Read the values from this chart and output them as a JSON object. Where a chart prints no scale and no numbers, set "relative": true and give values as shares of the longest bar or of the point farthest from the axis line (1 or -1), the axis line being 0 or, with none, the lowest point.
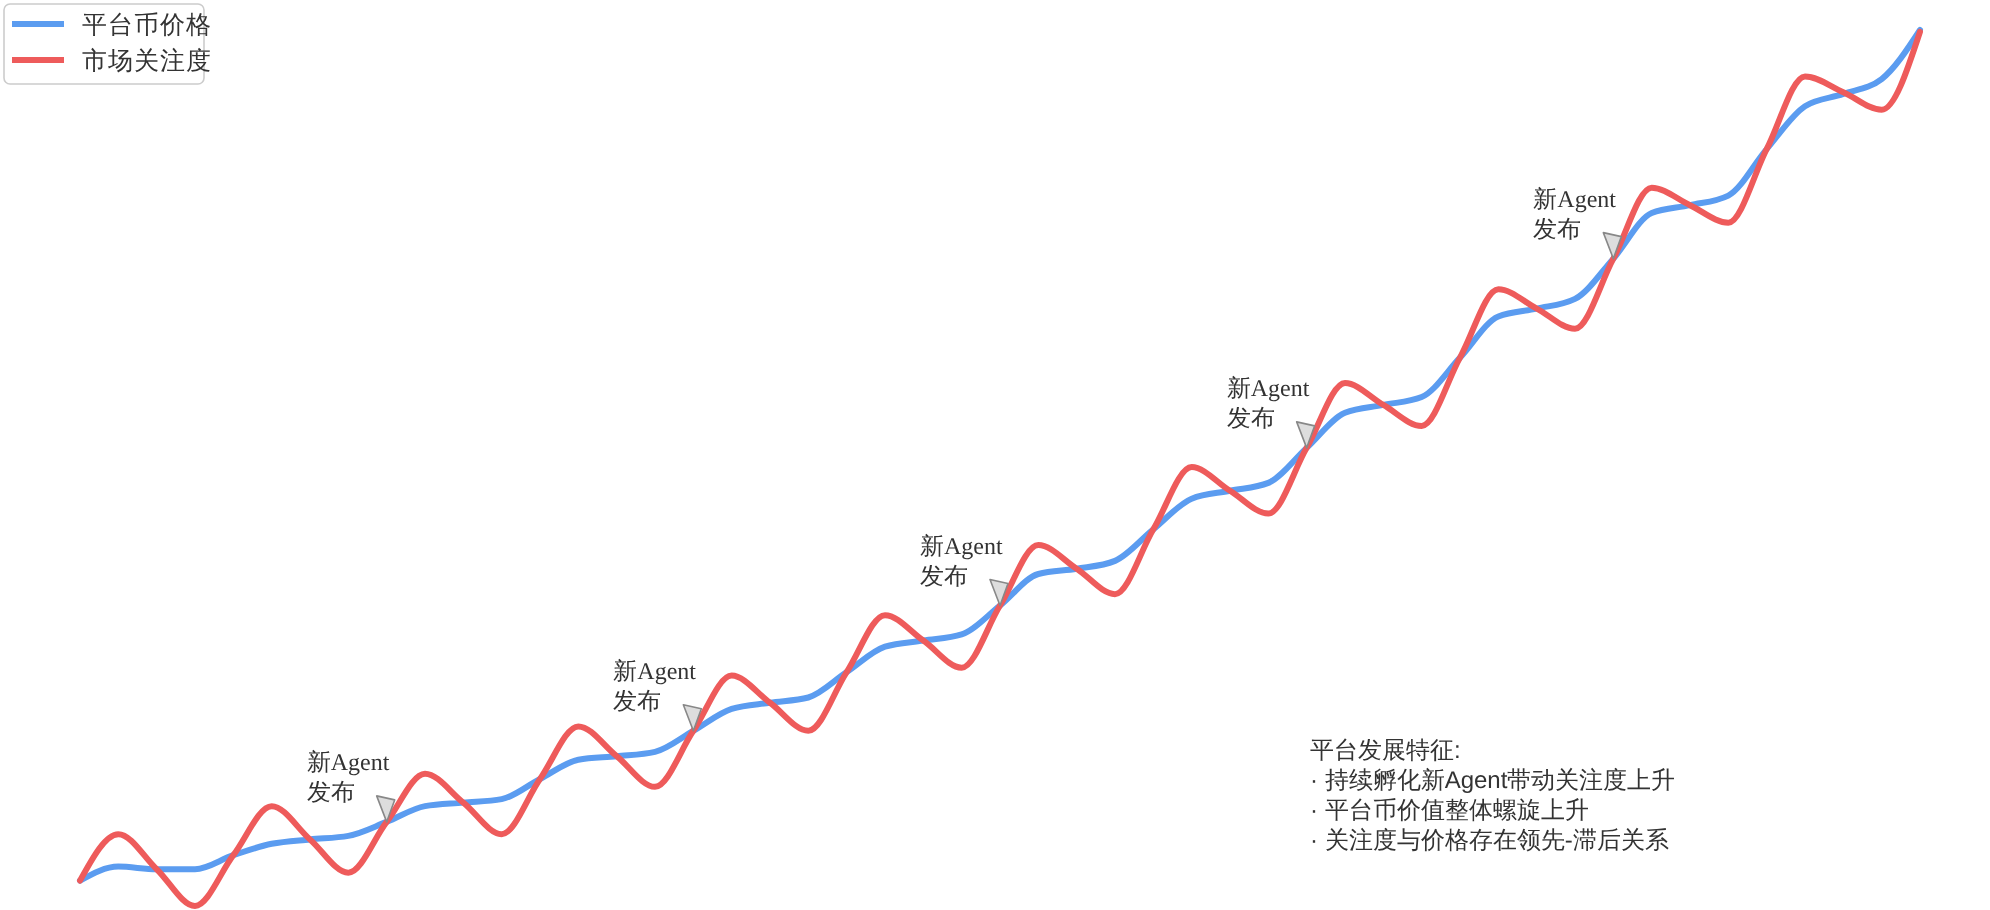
{
  "chart_data": {
    "type": "line",
    "relative": true,
    "legend": "top left",
    "categories": [
      null,
      null,
      null,
      null,
      null,
      null,
      null,
      null,
      null,
      null,
      null,
      null,
      null,
      null,
      null,
      null,
      null,
      null,
      null,
      null,
      null,
      null,
      null,
      null,
      null,
      null,
      null,
      null,
      null,
      null,
      null,
      null,
      null,
      null,
      null,
      null,
      null,
      null,
      null,
      null,
      null,
      null,
      null,
      null,
      null,
      null,
      null,
      null,
      null
    ],
    "series": [
      {
        "name": "平台币价格",
        "color": "#5b9cf0",
        "values": [
          0.029,
          0.045,
          0.042,
          0.042,
          0.058,
          0.071,
          0.076,
          0.08,
          0.096,
          0.114,
          0.118,
          0.122,
          0.145,
          0.167,
          0.171,
          0.176,
          0.2,
          0.225,
          0.232,
          0.238,
          0.267,
          0.296,
          0.303,
          0.31,
          0.343,
          0.379,
          0.385,
          0.394,
          0.43,
          0.465,
          0.474,
          0.483,
          0.523,
          0.563,
          0.572,
          0.581,
          0.626,
          0.673,
          0.682,
          0.693,
          0.739,
          0.791,
          0.8,
          0.811,
          0.864,
          0.913,
          0.927,
          0.944,
          1.0
        ]
      },
      {
        "name": "市场关注度",
        "color": "#ee5b5b",
        "values": [
          0.029,
          0.082,
          0.042,
          0,
          0.058,
          0.114,
          0.076,
          0.038,
          0.096,
          0.151,
          0.118,
          0.082,
          0.145,
          0.205,
          0.171,
          0.136,
          0.2,
          0.263,
          0.232,
          0.2,
          0.267,
          0.332,
          0.303,
          0.272,
          0.343,
          0.412,
          0.385,
          0.356,
          0.43,
          0.501,
          0.474,
          0.448,
          0.523,
          0.597,
          0.572,
          0.548,
          0.626,
          0.704,
          0.682,
          0.659,
          0.739,
          0.82,
          0.8,
          0.78,
          0.864,
          0.947,
          0.929,
          0.909,
          0.998
        ]
      }
    ],
    "annotations": [
      "新Agent\n发布",
      "新Agent\n发布",
      "新Agent\n发布",
      "新Agent\n发布",
      "新Agent\n发布",
      "平台发展特征:\n· 持续孵化新Agent带动关注度上升\n· 平台币价值整体螺旋上升\n· 关注度与价格存在领先-滞后关系"
    ]
  }
}
